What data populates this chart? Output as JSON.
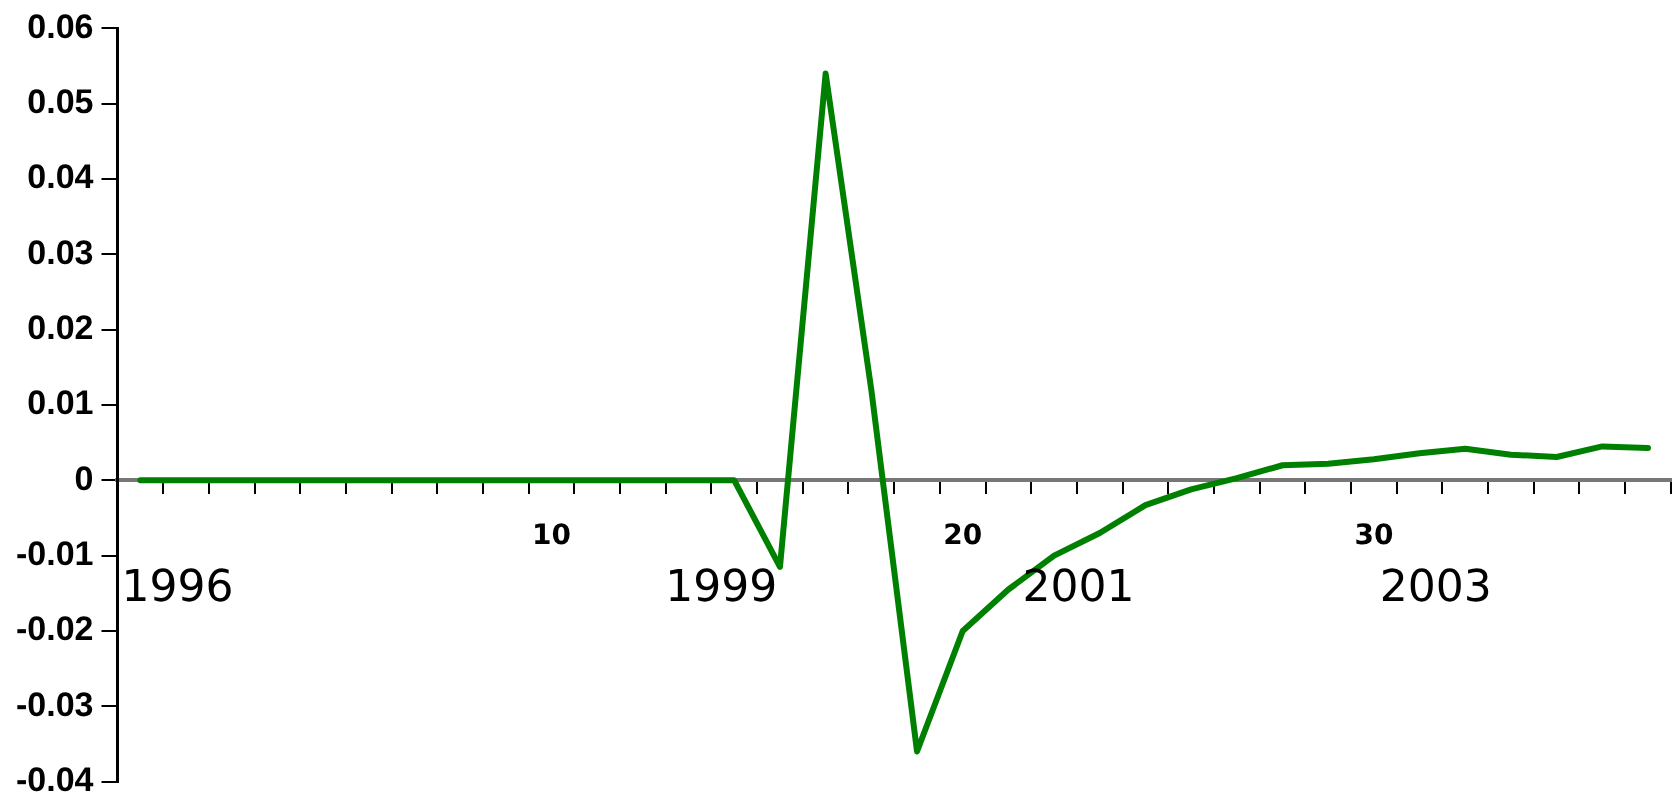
{
  "chart_data": {
    "type": "line",
    "categories": [
      null,
      null,
      null,
      null,
      null,
      null,
      null,
      null,
      null,
      "10",
      null,
      null,
      null,
      null,
      null,
      null,
      null,
      null,
      "20",
      null,
      null,
      null,
      null,
      null,
      null,
      null,
      null,
      "30",
      null,
      null,
      null,
      null,
      null,
      null
    ],
    "series": [
      {
        "color": "#008000",
        "values": [
          0,
          0,
          0,
          0,
          0,
          0,
          0,
          0,
          0,
          0,
          0,
          0,
          0,
          0,
          -0.0115,
          0.054,
          0.012,
          -0.036,
          -0.02,
          -0.0145,
          -0.01,
          -0.007,
          -0.0033,
          -0.0012,
          0.0003,
          0.002,
          0.0022,
          0.0028,
          0.0036,
          0.0042,
          0.0034,
          0.0031,
          0.0045,
          0.0043
        ]
      }
    ],
    "ylim": [
      -0.04,
      0.06
    ],
    "yticks": [
      -0.04,
      -0.03,
      -0.02,
      -0.01,
      0,
      0.01,
      0.02,
      0.03,
      0.04,
      0.05,
      0.06
    ],
    "annotations": [
      "1996",
      "1999",
      "2001",
      "2003"
    ],
    "grid": false,
    "legend": false,
    "marker": "none",
    "line_style": "solid"
  }
}
